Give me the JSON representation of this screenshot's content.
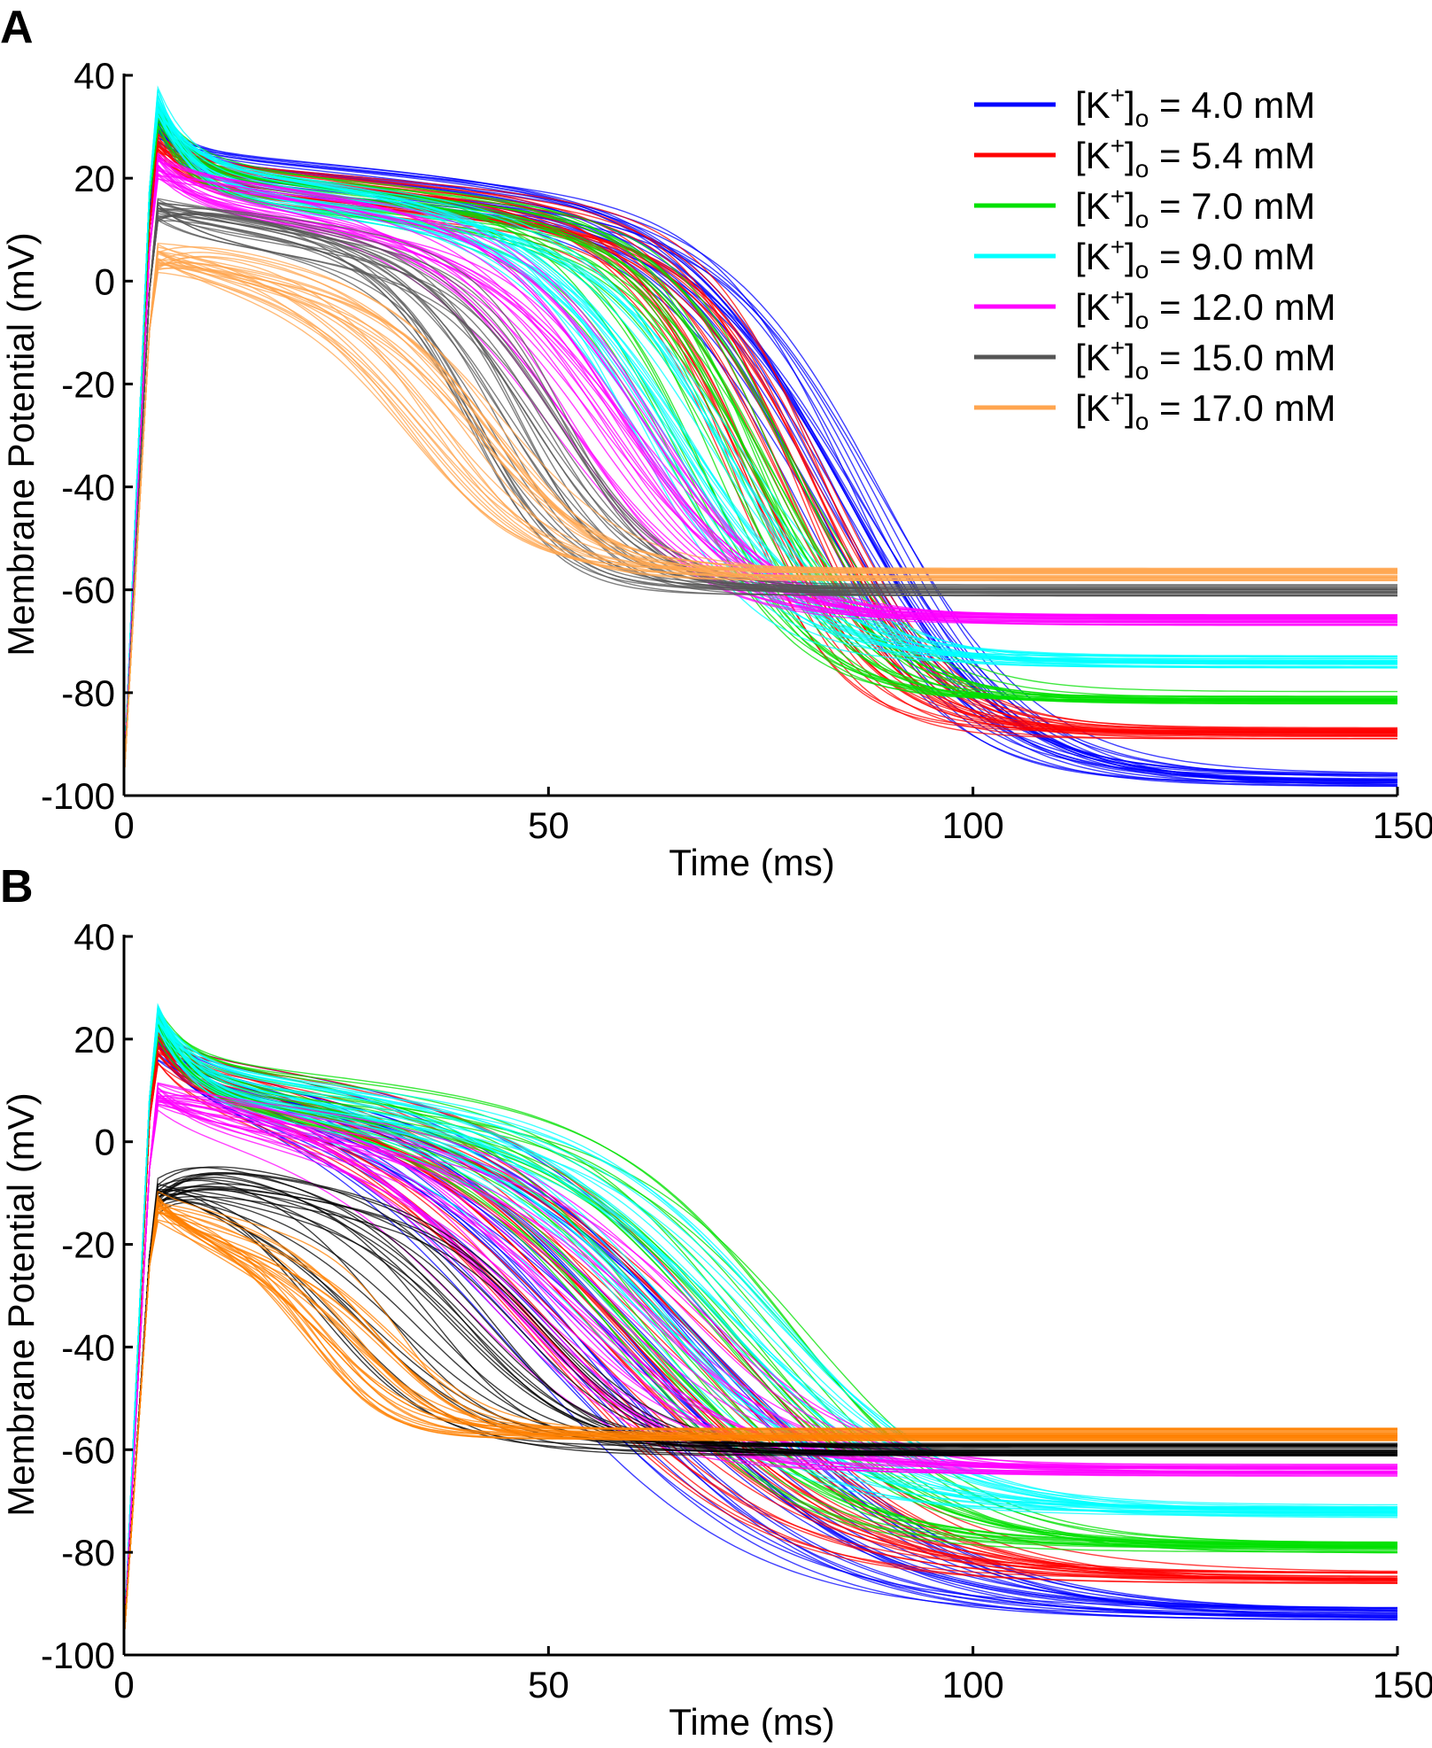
{
  "chart_data": [
    {
      "panel_label": "A",
      "type": "line",
      "xlabel": "Time (ms)",
      "ylabel": "Membrane Potential (mV)",
      "xlim": [
        0,
        150
      ],
      "ylim": [
        -100,
        40
      ],
      "xticks": [
        0,
        50,
        100,
        150
      ],
      "yticks": [
        40,
        20,
        0,
        -20,
        -40,
        -60,
        -80,
        -100
      ],
      "grid": false,
      "legend_position": "top-right",
      "series": [
        {
          "name": "[K+]o = 4.0 mM",
          "k_label_value": "4.0",
          "color": "#0000ff",
          "peak": 30,
          "rest": -97,
          "plateau": 22,
          "apd": 85,
          "spread": 7,
          "width": 9
        },
        {
          "name": "[K+]o = 5.4 mM",
          "k_label_value": "5.4",
          "color": "#ff0000",
          "peak": 28,
          "rest": -88,
          "plateau": 20,
          "apd": 77,
          "spread": 6,
          "width": 7
        },
        {
          "name": "[K+]o = 7.0 mM",
          "k_label_value": "7.0",
          "color": "#00e000",
          "peak": 34,
          "rest": -81,
          "plateau": 20,
          "apd": 72,
          "spread": 7,
          "width": 7
        },
        {
          "name": "[K+]o = 9.0 mM",
          "k_label_value": "9.0",
          "color": "#00ffff",
          "peak": 37,
          "rest": -74,
          "plateau": 20,
          "apd": 67,
          "spread": 7,
          "width": 8
        },
        {
          "name": "[K+]o = 12.0 mM",
          "k_label_value": "12.0",
          "color": "#ff00ff",
          "peak": 23,
          "rest": -66,
          "plateau": 18,
          "apd": 57,
          "spread": 6,
          "width": 8
        },
        {
          "name": "[K+]o = 15.0 mM",
          "k_label_value": "15.0",
          "color": "#555555",
          "peak": 14,
          "rest": -60,
          "plateau": 13,
          "apd": 47,
          "spread": 6,
          "width": 6
        },
        {
          "name": "[K+]o = 17.0 mM",
          "k_label_value": "17.0",
          "color": "#ffa54f",
          "peak": 5,
          "rest": -57,
          "plateau": 6,
          "apd": 40,
          "spread": 6,
          "width": 7
        }
      ]
    },
    {
      "panel_label": "B",
      "type": "line",
      "xlabel": "Time (ms)",
      "ylabel": "Membrane Potential (mV)",
      "xlim": [
        0,
        150
      ],
      "ylim": [
        -100,
        40
      ],
      "xticks": [
        0,
        50,
        100,
        150
      ],
      "yticks": [
        40,
        20,
        0,
        -20,
        -40,
        -60,
        -80,
        -100
      ],
      "grid": false,
      "series": [
        {
          "name": "[K+]o = 4.0 mM",
          "color": "#0000ff",
          "peak": 22,
          "rest": -92,
          "plateau": 14,
          "apd": 60,
          "spread": 14,
          "width": 14
        },
        {
          "name": "[K+]o = 5.4 mM",
          "color": "#ff0000",
          "peak": 21,
          "rest": -85,
          "plateau": 14,
          "apd": 62,
          "spread": 12,
          "width": 13
        },
        {
          "name": "[K+]o = 7.0 mM",
          "color": "#00e000",
          "peak": 25,
          "rest": -79,
          "plateau": 13,
          "apd": 70,
          "spread": 12,
          "width": 11
        },
        {
          "name": "[K+]o = 9.0 mM",
          "color": "#00ffff",
          "peak": 26,
          "rest": -72,
          "plateau": 12,
          "apd": 66,
          "spread": 12,
          "width": 11
        },
        {
          "name": "[K+]o = 12.0 mM",
          "color": "#ff00ff",
          "peak": 10,
          "rest": -64,
          "plateau": 8,
          "apd": 56,
          "spread": 14,
          "width": 10
        },
        {
          "name": "[K+]o = 15.0 mM",
          "color": "#000000",
          "peak": -10,
          "rest": -60,
          "plateau": -5,
          "apd": 38,
          "spread": 14,
          "width": 7
        },
        {
          "name": "[K+]o = 17.0 mM",
          "color": "#ff8000",
          "peak": -12,
          "rest": -57,
          "plateau": -14,
          "apd": 28,
          "spread": 6,
          "width": 5
        }
      ]
    }
  ]
}
